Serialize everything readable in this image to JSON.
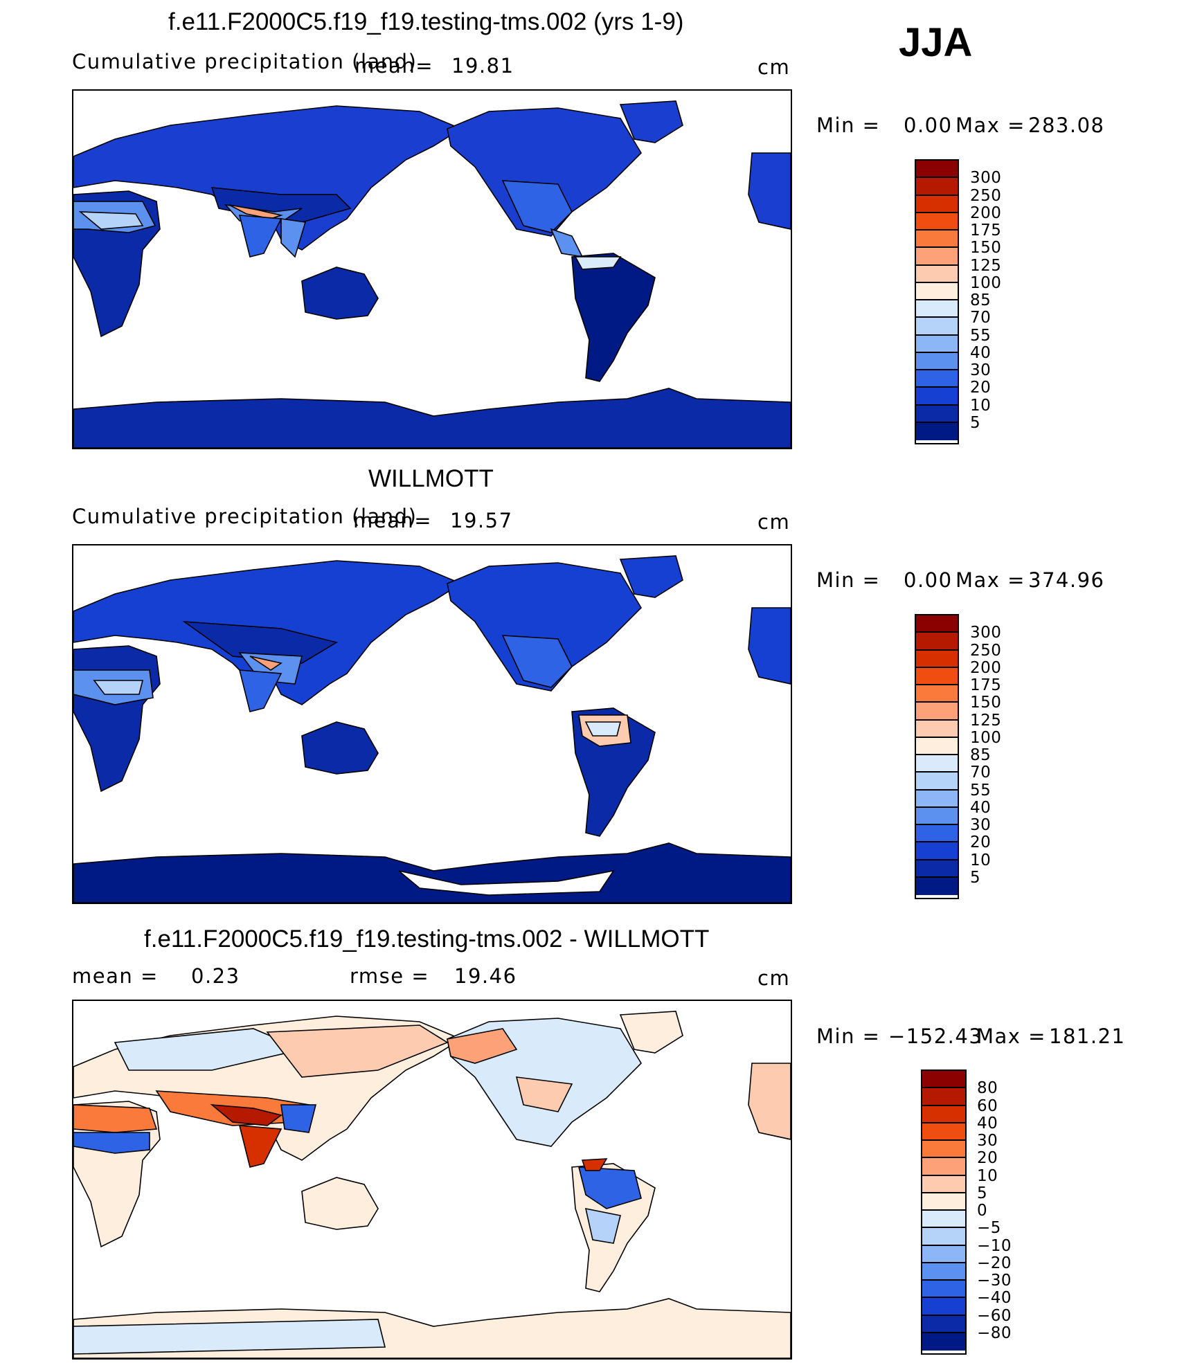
{
  "season": "JJA",
  "units": "cm",
  "panels": [
    {
      "title": "f.e11.F2000C5.f19_f19.testing-tms.002 (yrs 1-9)",
      "subtitle": "Cumulative precipitation (land)",
      "mean_label": "mean=",
      "mean_value": "19.81",
      "min_label": "Min =",
      "min_value": "0.00",
      "max_label": "Max =",
      "max_value": "283.08"
    },
    {
      "title": "WILLMOTT",
      "subtitle": "Cumulative precipitation (land)",
      "mean_label": "mean=",
      "mean_value": "19.57",
      "min_label": "Min =",
      "min_value": "0.00",
      "max_label": "Max =",
      "max_value": "374.96"
    },
    {
      "title": "f.e11.F2000C5.f19_f19.testing-tms.002 - WILLMOTT",
      "mean_label": "mean =",
      "mean_value": "0.23",
      "rmse_label": "rmse =",
      "rmse_value": "19.46",
      "min_label": "Min =",
      "min_value": "−152.43",
      "max_label": "Max =",
      "max_value": "181.21"
    }
  ],
  "colorbar_precip": {
    "labels": [
      "300",
      "250",
      "200",
      "175",
      "150",
      "125",
      "100",
      "85",
      "70",
      "55",
      "40",
      "30",
      "20",
      "10",
      "5"
    ],
    "colors": [
      "#8b0000",
      "#b51a00",
      "#d63000",
      "#f04e10",
      "#fa7a3c",
      "#fca178",
      "#fdcbb0",
      "#fdeedd",
      "#d9ebfb",
      "#b5d3f8",
      "#8cb6f5",
      "#5c91f0",
      "#2f63e6",
      "#1540d2",
      "#0a2aa8",
      "#001a85"
    ]
  },
  "colorbar_diff": {
    "labels": [
      "80",
      "60",
      "40",
      "30",
      "20",
      "10",
      "5",
      "0",
      "−5",
      "−10",
      "−20",
      "−30",
      "−40",
      "−60",
      "−80"
    ],
    "colors": [
      "#8b0000",
      "#b51a00",
      "#d63000",
      "#f04e10",
      "#fa7a3c",
      "#fca178",
      "#fdcbb0",
      "#fdeedd",
      "#d9ebfb",
      "#b5d3f8",
      "#8cb6f5",
      "#5c91f0",
      "#2f63e6",
      "#1540d2",
      "#0a2aa8",
      "#001a85"
    ]
  }
}
